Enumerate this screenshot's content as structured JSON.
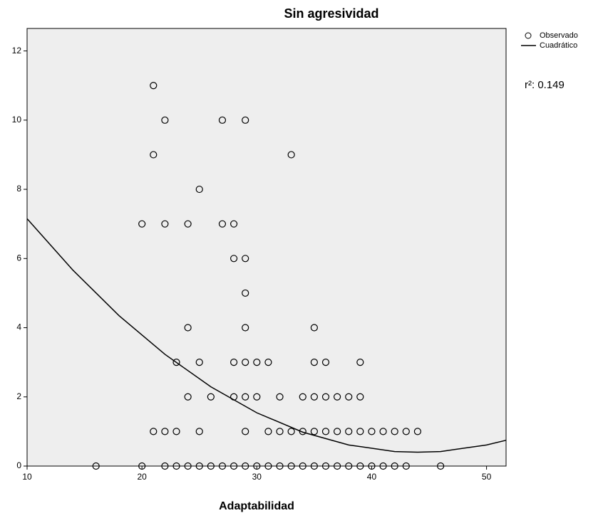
{
  "chart_data": {
    "type": "scatter",
    "title": "Sin agresividad",
    "x_label": "Adaptabilidad",
    "annotation": "r²: 0.149",
    "xlim": [
      10,
      51.7
    ],
    "ylim": [
      0,
      12.65
    ],
    "xticks": [
      10,
      20,
      30,
      40,
      50
    ],
    "yticks": [
      0,
      2,
      4,
      6,
      8,
      10,
      12
    ],
    "background": "#eeeeee",
    "series": [
      {
        "name": "Observado",
        "kind": "points",
        "color": "#000000",
        "x": [
          21,
          22,
          27,
          29,
          21,
          33,
          25,
          20,
          22,
          24,
          27,
          28,
          28,
          29,
          29,
          24,
          29,
          35,
          23,
          25,
          28,
          29,
          30,
          31,
          35,
          36,
          39,
          24,
          26,
          28,
          29,
          30,
          32,
          34,
          35,
          36,
          37,
          38,
          39,
          21,
          22,
          23,
          25,
          29,
          31,
          32,
          33,
          34,
          35,
          36,
          37,
          38,
          39,
          40,
          41,
          42,
          43,
          44,
          16,
          20,
          22,
          23,
          24,
          25,
          26,
          27,
          28,
          29,
          30,
          31,
          32,
          33,
          34,
          35,
          36,
          37,
          38,
          39,
          40,
          41,
          42,
          43,
          46
        ],
        "values": [
          11,
          10,
          10,
          10,
          9,
          9,
          8,
          7,
          7,
          7,
          7,
          7,
          6,
          6,
          5,
          4,
          4,
          4,
          3,
          3,
          3,
          3,
          3,
          3,
          3,
          3,
          3,
          2,
          2,
          2,
          2,
          2,
          2,
          2,
          2,
          2,
          2,
          2,
          2,
          1,
          1,
          1,
          1,
          1,
          1,
          1,
          1,
          1,
          1,
          1,
          1,
          1,
          1,
          1,
          1,
          1,
          1,
          1,
          0,
          0,
          0,
          0,
          0,
          0,
          0,
          0,
          0,
          0,
          0,
          0,
          0,
          0,
          0,
          0,
          0,
          0,
          0,
          0,
          0,
          0,
          0,
          0,
          0
        ]
      },
      {
        "name": "Cuadrático",
        "kind": "line",
        "color": "#000000",
        "x": [
          10,
          14,
          18,
          22,
          26,
          30,
          34,
          38,
          42,
          44,
          46,
          50,
          52
        ],
        "values": [
          7.15,
          5.66,
          4.35,
          3.23,
          2.29,
          1.54,
          0.98,
          0.61,
          0.42,
          0.4,
          0.42,
          0.61,
          0.77
        ]
      }
    ]
  }
}
